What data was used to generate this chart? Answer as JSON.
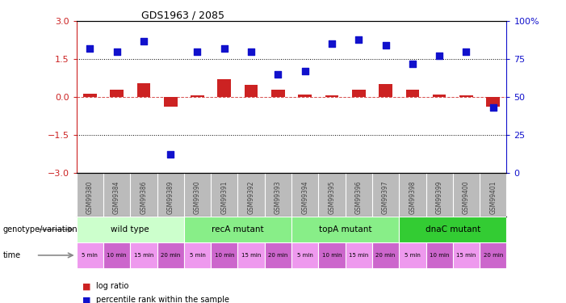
{
  "title": "GDS1963 / 2085",
  "samples": [
    "GSM99380",
    "GSM99384",
    "GSM99386",
    "GSM99389",
    "GSM99390",
    "GSM99391",
    "GSM99392",
    "GSM99393",
    "GSM99394",
    "GSM99395",
    "GSM99396",
    "GSM99397",
    "GSM99398",
    "GSM99399",
    "GSM99400",
    "GSM99401"
  ],
  "log_ratio": [
    0.12,
    0.28,
    0.55,
    -0.38,
    0.06,
    0.72,
    0.48,
    0.3,
    0.1,
    0.06,
    0.3,
    0.52,
    0.28,
    0.1,
    0.08,
    -0.38
  ],
  "percentile": [
    82,
    80,
    87,
    12,
    80,
    82,
    80,
    65,
    67,
    85,
    88,
    84,
    72,
    77,
    80,
    43
  ],
  "bar_color": "#cc2222",
  "dot_color": "#1111cc",
  "ylim_left": [
    -3,
    3
  ],
  "ylim_right": [
    0,
    100
  ],
  "yticks_left": [
    -3,
    -1.5,
    0,
    1.5,
    3
  ],
  "yticks_right": [
    0,
    25,
    50,
    75,
    100
  ],
  "genotype_groups": [
    {
      "label": "wild type",
      "start": 0,
      "end": 4,
      "color": "#ccffcc"
    },
    {
      "label": "recA mutant",
      "start": 4,
      "end": 8,
      "color": "#88ee88"
    },
    {
      "label": "topA mutant",
      "start": 8,
      "end": 12,
      "color": "#88ee88"
    },
    {
      "label": "dnaC mutant",
      "start": 12,
      "end": 16,
      "color": "#33cc33"
    }
  ],
  "time_labels": [
    "5 min",
    "10 min",
    "15 min",
    "20 min",
    "5 min",
    "10 min",
    "15 min",
    "20 min",
    "5 min",
    "10 min",
    "15 min",
    "20 min",
    "5 min",
    "10 min",
    "15 min",
    "20 min"
  ],
  "time_colors": [
    "#ee99ee",
    "#cc66cc",
    "#ee99ee",
    "#cc66cc",
    "#ee99ee",
    "#cc66cc",
    "#ee99ee",
    "#cc66cc",
    "#ee99ee",
    "#cc66cc",
    "#ee99ee",
    "#cc66cc",
    "#ee99ee",
    "#cc66cc",
    "#ee99ee",
    "#cc66cc"
  ],
  "sample_bg_color": "#bbbbbb",
  "sample_label_color": "#444444",
  "legend_bar_label": "log ratio",
  "legend_dot_label": "percentile rank within the sample",
  "genotype_label": "genotype/variation",
  "time_label": "time",
  "bar_color_red": "#cc2222",
  "dot_color_blue": "#1111cc",
  "bg_color": "#ffffff"
}
